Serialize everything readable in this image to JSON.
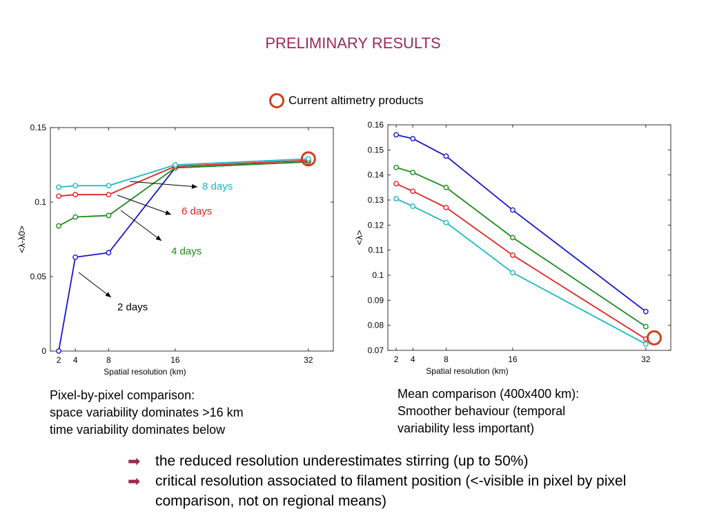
{
  "title": "PRELIMINARY RESULTS",
  "legend": {
    "label": "Current altimetry products",
    "marker_color": "#d63c1c"
  },
  "chart_data": [
    {
      "type": "line",
      "xlabel": "Spatial resolution (km)",
      "ylabel": "<λ-λ0>",
      "x": [
        2,
        4,
        8,
        16,
        32
      ],
      "xlim": [
        1,
        35
      ],
      "ylim": [
        0,
        0.15
      ],
      "xticks": [
        "2",
        "4",
        "8",
        "16",
        "32"
      ],
      "yticks": [
        "0",
        "0.05",
        "0.1",
        "0.15"
      ],
      "series": [
        {
          "name": "2 days",
          "color": "#1414d2",
          "values": [
            0.0,
            0.063,
            0.066,
            0.123,
            0.127
          ]
        },
        {
          "name": "4 days",
          "color": "#1a8a1a",
          "values": [
            0.084,
            0.09,
            0.091,
            0.123,
            0.127
          ]
        },
        {
          "name": "6 days",
          "color": "#e22020",
          "values": [
            0.104,
            0.105,
            0.105,
            0.124,
            0.128
          ]
        },
        {
          "name": "8 days",
          "color": "#19b8c4",
          "values": [
            0.11,
            0.111,
            0.111,
            0.125,
            0.129
          ]
        }
      ],
      "highlight": {
        "x": 32,
        "y": 0.129
      },
      "annotations": [
        {
          "text": "8 days",
          "color": "#19b8c4"
        },
        {
          "text": "6 days",
          "color": "#e22020"
        },
        {
          "text": "4 days",
          "color": "#1a8a1a"
        },
        {
          "text": "2 days",
          "color": "#000000"
        }
      ],
      "grid": false
    },
    {
      "type": "line",
      "xlabel": "Spatial resolution (km)",
      "ylabel": "<λ>",
      "x": [
        2,
        4,
        8,
        16,
        32
      ],
      "xlim": [
        1,
        35
      ],
      "ylim": [
        0.07,
        0.16
      ],
      "xticks": [
        "2",
        "4",
        "8",
        "16",
        "32"
      ],
      "yticks": [
        "0.07",
        "0.08",
        "0.09",
        "0.1",
        "0.11",
        "0.12",
        "0.13",
        "0.14",
        "0.15",
        "0.16"
      ],
      "series": [
        {
          "color": "#1414d2",
          "values": [
            0.156,
            0.1545,
            0.1475,
            0.126,
            0.0855
          ]
        },
        {
          "color": "#1a8a1a",
          "values": [
            0.143,
            0.141,
            0.135,
            0.115,
            0.0795
          ]
        },
        {
          "color": "#e22020",
          "values": [
            0.1365,
            0.1335,
            0.127,
            0.108,
            0.0745
          ]
        },
        {
          "color": "#19b8c4",
          "values": [
            0.1305,
            0.1275,
            0.121,
            0.101,
            0.0725
          ]
        }
      ],
      "highlight": {
        "x": 33,
        "y": 0.075
      },
      "grid": false
    }
  ],
  "captions": {
    "left": [
      "Pixel-by-pixel comparison:",
      "space variability dominates >16 km",
      "time variability dominates below"
    ],
    "right": [
      "Mean comparison (400x400 km):",
      "Smoother behaviour (temporal",
      "variability less important)"
    ]
  },
  "bullets": [
    "the reduced resolution underestimates stirring (up to 50%)",
    "critical resolution associated to filament position (<-visible in pixel by pixel comparison, not on regional means)"
  ],
  "bullet_icon": "right-arrow-icon"
}
